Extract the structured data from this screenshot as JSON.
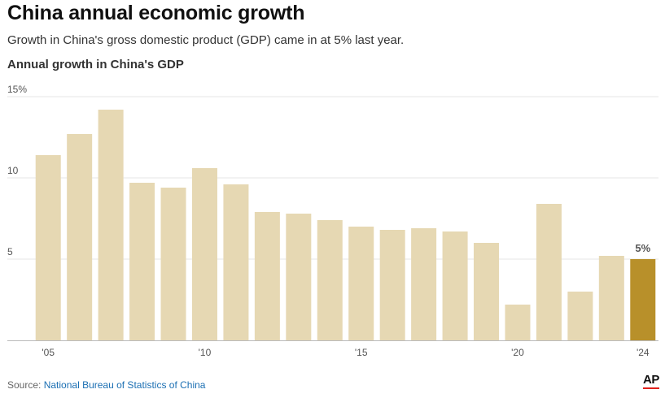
{
  "header": {
    "title": "China annual economic growth",
    "subtitle": "Growth in China's gross domestic product (GDP) came in at 5% last year.",
    "chart_heading": "Annual growth in China's GDP"
  },
  "footer": {
    "source_prefix": "Source: ",
    "source_link": "National Bureau of Statistics of China",
    "logo": "AP"
  },
  "colors": {
    "bar": "#e6d8b3",
    "highlight": "#b8902a",
    "grid": "#e6e6e6",
    "axis": "#bbbbbb",
    "tick_text": "#555555",
    "label_text": "#555555"
  },
  "chart_data": {
    "type": "bar",
    "categories": [
      "2005",
      "2006",
      "2007",
      "2008",
      "2009",
      "2010",
      "2011",
      "2012",
      "2013",
      "2014",
      "2015",
      "2016",
      "2017",
      "2018",
      "2019",
      "2020",
      "2021",
      "2022",
      "2023",
      "2024"
    ],
    "values": [
      11.4,
      12.7,
      14.2,
      9.7,
      9.4,
      10.6,
      9.6,
      7.9,
      7.8,
      7.4,
      7.0,
      6.8,
      6.9,
      6.7,
      6.0,
      2.2,
      8.4,
      3.0,
      5.2,
      5.0
    ],
    "highlight_index": 19,
    "highlight_label": "5%",
    "ylim": [
      0,
      15
    ],
    "yticks": [
      {
        "value": 5,
        "label": "5"
      },
      {
        "value": 10,
        "label": "10"
      },
      {
        "value": 15,
        "label": "15%"
      }
    ],
    "xticks": [
      {
        "index": 0,
        "label": "'05"
      },
      {
        "index": 5,
        "label": "'10"
      },
      {
        "index": 10,
        "label": "'15"
      },
      {
        "index": 15,
        "label": "'20"
      },
      {
        "index": 19,
        "label": "'24"
      }
    ],
    "grid": true,
    "xlabel": "",
    "ylabel": ""
  }
}
